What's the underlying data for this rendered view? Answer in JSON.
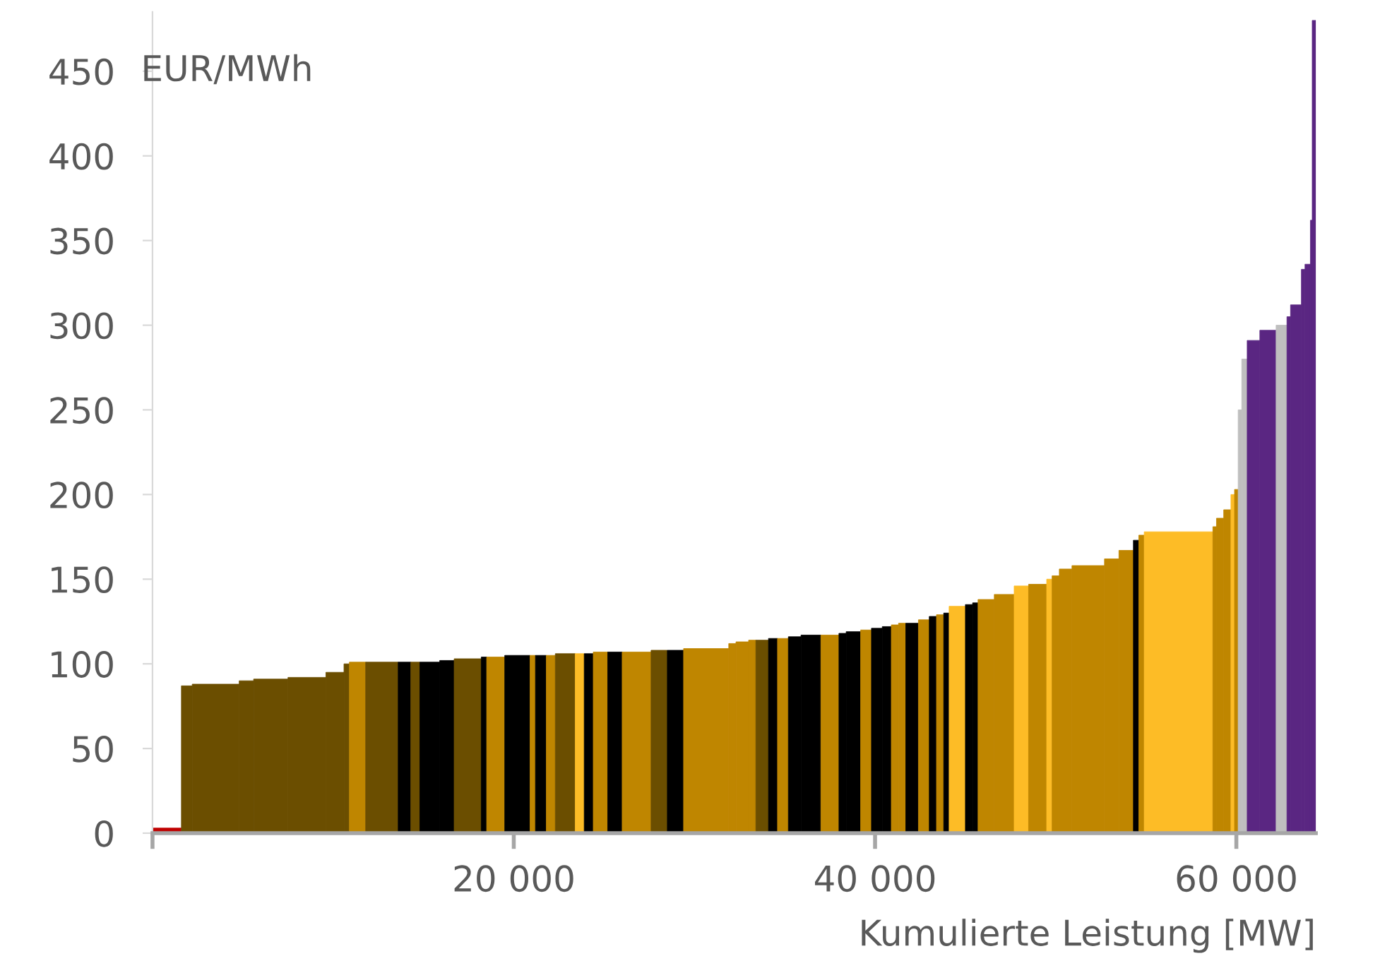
{
  "chart_data": {
    "type": "histogram",
    "ylabel": "EUR/MWh",
    "xlabel": "Kumulierte Leistung [MW]",
    "bins": [
      0,
      1600,
      2200,
      4800,
      5600,
      7500,
      9600,
      10600,
      10900,
      11800,
      13600,
      14300,
      14800,
      15900,
      16700,
      18200,
      18500,
      19500,
      20900,
      21200,
      21800,
      22300,
      23400,
      23900,
      24400,
      25200,
      26000,
      27600,
      28500,
      29400,
      31900,
      32300,
      33000,
      33400,
      34100,
      34600,
      35200,
      35900,
      37000,
      38000,
      38400,
      39200,
      39800,
      40400,
      40900,
      41300,
      41700,
      42400,
      43000,
      43400,
      43800,
      44100,
      45000,
      45400,
      45700,
      46600,
      47700,
      48500,
      49500,
      49800,
      50200,
      50900,
      52700,
      53500,
      54300,
      54600,
      54900,
      58700,
      58900,
      59300,
      59700,
      59900,
      60100,
      60300,
      60600,
      61300,
      62200,
      62800,
      63000,
      63600,
      63800,
      64100,
      64200,
      64400
    ],
    "values": [
      3,
      87,
      88,
      90,
      91,
      92,
      95,
      100,
      101,
      101,
      101,
      101,
      101,
      102,
      103,
      104,
      104,
      105,
      105,
      105,
      105,
      106,
      106,
      106,
      107,
      107,
      107,
      108,
      108,
      109,
      112,
      113,
      114,
      114,
      115,
      115,
      116,
      117,
      117,
      118,
      119,
      120,
      121,
      122,
      123,
      124,
      124,
      126,
      128,
      129,
      130,
      134,
      135,
      136,
      138,
      141,
      146,
      147,
      150,
      152,
      156,
      158,
      162,
      167,
      173,
      176,
      178,
      181,
      186,
      191,
      200,
      203,
      250,
      280,
      291,
      297,
      300,
      305,
      312,
      333,
      336,
      362,
      480
    ],
    "colors": [
      "#c00000",
      "#6b4e00",
      "#6b4e00",
      "#6b4e00",
      "#6b4e00",
      "#6b4e00",
      "#6b4e00",
      "#6b4e00",
      "#bf8600",
      "#6b4e00",
      "#000000",
      "#6b4e00",
      "#000000",
      "#000000",
      "#6b4e00",
      "#000000",
      "#bf8600",
      "#000000",
      "#bf8600",
      "#000000",
      "#bf8600",
      "#6b4e00",
      "#fdbc26",
      "#000000",
      "#bf8600",
      "#000000",
      "#bf8600",
      "#6b4e00",
      "#000000",
      "#bf8600",
      "#bf8600",
      "#bf8600",
      "#bf8600",
      "#6b4e00",
      "#000000",
      "#bf8600",
      "#000000",
      "#000000",
      "#bf8600",
      "#000000",
      "#000000",
      "#bf8600",
      "#000000",
      "#000000",
      "#bf8600",
      "#bf8600",
      "#000000",
      "#bf8600",
      "#000000",
      "#bf8600",
      "#000000",
      "#fdbc26",
      "#000000",
      "#000000",
      "#bf8600",
      "#bf8600",
      "#fdbc26",
      "#bf8600",
      "#fdbc26",
      "#bf8600",
      "#bf8600",
      "#bf8600",
      "#bf8600",
      "#bf8600",
      "#000000",
      "#bf8600",
      "#fdbc26",
      "#bf8600",
      "#bf8600",
      "#bf8600",
      "#fdbc26",
      "#bf8600",
      "#bfbfbf",
      "#bfbfbf",
      "#5a2682",
      "#5a2682",
      "#bfbfbf",
      "#5a2682",
      "#5a2682",
      "#5a2682",
      "#5a2682",
      "#5a2682",
      "#5a2682"
    ],
    "xlim": [
      0,
      64400
    ],
    "ylim": [
      0,
      485
    ],
    "xticks": [
      {
        "value": 0,
        "label": null
      },
      {
        "value": 20000,
        "label": "20 000"
      },
      {
        "value": 40000,
        "label": "40 000"
      },
      {
        "value": 60000,
        "label": "60 000"
      }
    ],
    "yticks": [
      0,
      50,
      100,
      150,
      200,
      250,
      300,
      350,
      400,
      450
    ],
    "grid": false
  }
}
